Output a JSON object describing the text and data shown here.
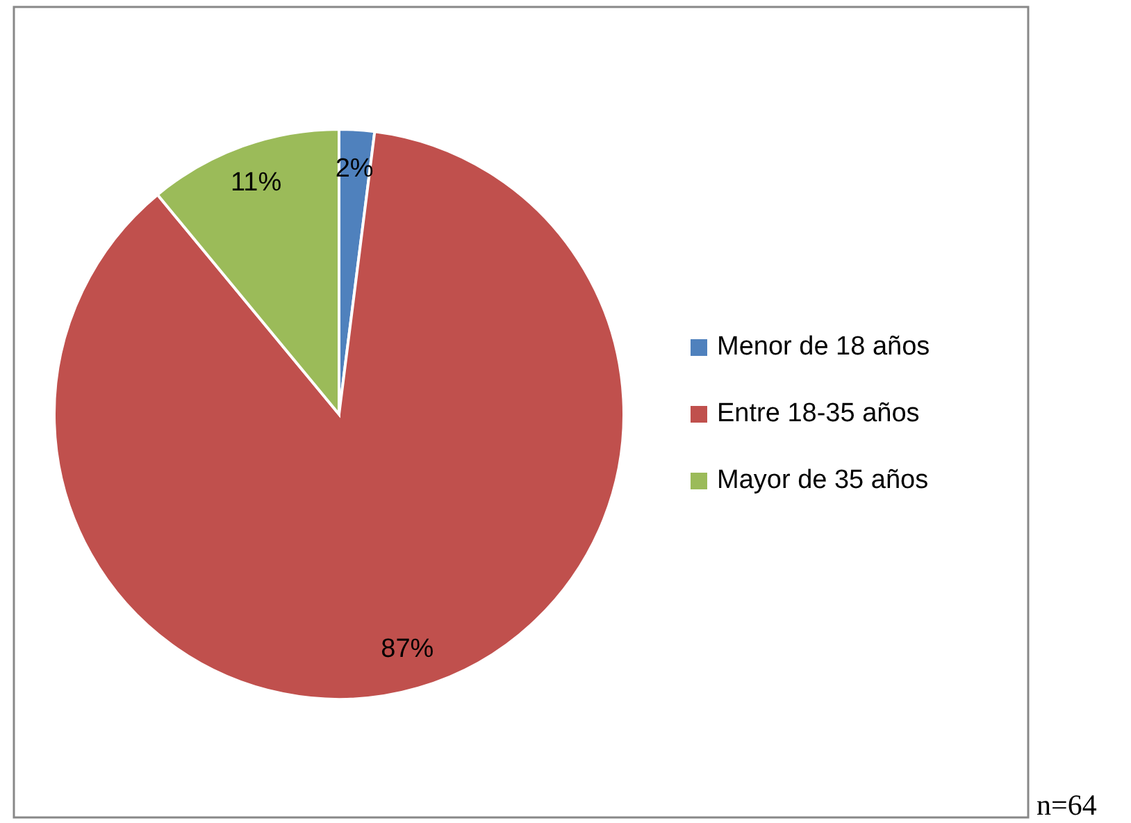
{
  "chart_data": {
    "type": "pie",
    "categories": [
      "Menor de 18 años",
      "Entre 18-35 años",
      "Mayor de 35 años"
    ],
    "values": [
      2,
      87,
      11
    ],
    "colors": [
      "#4f81bd",
      "#c0504d",
      "#9bbb59"
    ],
    "value_labels": [
      "2%",
      "87%",
      "11%"
    ],
    "legend": "right",
    "annotations": [
      "n=64"
    ]
  }
}
